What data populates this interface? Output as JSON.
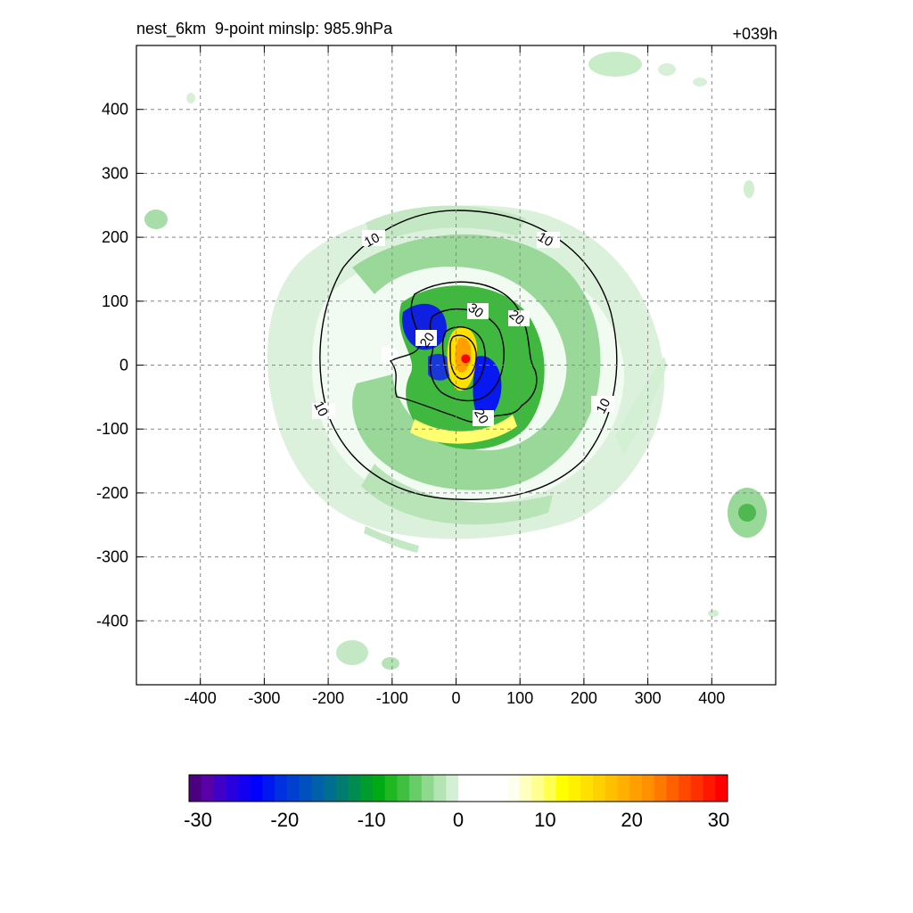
{
  "chart_data": {
    "type": "heatmap",
    "title_left": "nest_6km  9-point minslp: 985.9hPa",
    "title_right": "+039h",
    "xlim": [
      -500,
      500
    ],
    "ylim": [
      -500,
      500
    ],
    "x_ticks": [
      -400,
      -300,
      -200,
      -100,
      0,
      100,
      200,
      300,
      400
    ],
    "y_ticks": [
      400,
      300,
      200,
      100,
      0,
      -100,
      -200,
      -300,
      -400
    ],
    "grid": true,
    "center_marker": {
      "x": 15,
      "y": 10,
      "color": "#ff0000"
    },
    "contours": [
      {
        "label": "10",
        "level": 10
      },
      {
        "label": "20",
        "level": 20
      },
      {
        "label": "30",
        "level": 30
      }
    ],
    "colorbar": {
      "min": -30,
      "max": 30,
      "tick_labels": [
        "-30",
        "-20",
        "-10",
        "0",
        "10",
        "20",
        "30"
      ],
      "colors": [
        "#4b0082",
        "#5a00a8",
        "#4000c8",
        "#2800e0",
        "#1400f0",
        "#0000ff",
        "#0018f0",
        "#0030e0",
        "#0040d0",
        "#0050c0",
        "#0060a8",
        "#006e90",
        "#007c70",
        "#008c50",
        "#009c30",
        "#00aa14",
        "#20b820",
        "#40c040",
        "#68cc68",
        "#90d890",
        "#b4e4b4",
        "#d4f0d4",
        "#ffffff",
        "#ffffff",
        "#ffffff",
        "#ffffff",
        "#fffff0",
        "#ffffc0",
        "#ffff90",
        "#ffff50",
        "#ffff00",
        "#fff000",
        "#ffe000",
        "#ffd000",
        "#ffc000",
        "#ffb000",
        "#ffa000",
        "#ff9000",
        "#ff7800",
        "#ff6000",
        "#ff4800",
        "#ff3000",
        "#ff1800",
        "#ff0000"
      ]
    }
  }
}
